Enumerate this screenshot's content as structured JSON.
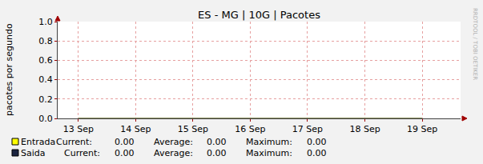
{
  "chart_data": {
    "type": "line",
    "title": "ES - MG | 10G | Pacotes",
    "y_label": "pacotes por segundo",
    "watermark": "RRDTOOL / TOBI OETIKER",
    "x": [
      13,
      14,
      15,
      16,
      17,
      18,
      19
    ],
    "series": [
      {
        "name": "Entrada",
        "color": "#ffff00",
        "values": [
          0,
          0,
          0,
          0,
          0,
          0,
          0
        ],
        "legend_stats": [
          {
            "label": "Current:",
            "value": "0.00"
          },
          {
            "label": "Average:",
            "value": "0.00"
          },
          {
            "label": "Maximum:",
            "value": "0.00"
          }
        ]
      },
      {
        "name": "Saida",
        "color": "#1b2440",
        "values": [
          0,
          0,
          0,
          0,
          0,
          0,
          0
        ],
        "legend_stats": [
          {
            "label": "Current:",
            "value": "0.00"
          },
          {
            "label": "Average:",
            "value": "0.00"
          },
          {
            "label": "Maximum:",
            "value": "0.00"
          }
        ]
      }
    ],
    "xlim": [
      12.64,
      19.67
    ],
    "xticks": [
      {
        "value": 13,
        "label": "13 Sep"
      },
      {
        "value": 14,
        "label": "14 Sep"
      },
      {
        "value": 15,
        "label": "15 Sep"
      },
      {
        "value": 16,
        "label": "16 Sep"
      },
      {
        "value": 17,
        "label": "17 Sep"
      },
      {
        "value": 18,
        "label": "18 Sep"
      },
      {
        "value": 19,
        "label": "19 Sep"
      }
    ],
    "ylim": [
      0,
      1
    ],
    "yticks": [
      {
        "value": 0,
        "label": "0.0"
      },
      {
        "value": 0.2,
        "label": "0.2"
      },
      {
        "value": 0.4,
        "label": "0.4"
      },
      {
        "value": 0.6,
        "label": "0.6"
      },
      {
        "value": 0.8,
        "label": "0.8"
      },
      {
        "value": 1,
        "label": "1.0"
      }
    ],
    "grid": true
  }
}
